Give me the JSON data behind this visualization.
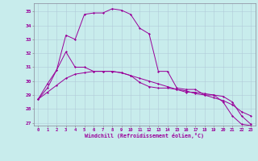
{
  "bg_color": "#c8ecec",
  "grid_color": "#b0c8d8",
  "line_color": "#990099",
  "xlabel": "Windchill (Refroidissement éolien,°C)",
  "xlim": [
    -0.5,
    23.5
  ],
  "ylim": [
    26.8,
    35.6
  ],
  "yticks": [
    27,
    28,
    29,
    30,
    31,
    32,
    33,
    34,
    35
  ],
  "xticks": [
    0,
    1,
    2,
    3,
    4,
    5,
    6,
    7,
    8,
    9,
    10,
    11,
    12,
    13,
    14,
    15,
    16,
    17,
    18,
    19,
    20,
    21,
    22,
    23
  ],
  "line1_x": [
    0,
    1,
    2,
    3,
    4,
    5,
    6,
    7,
    8,
    9,
    10,
    11,
    12,
    13,
    14,
    15,
    16,
    17,
    18,
    19,
    20,
    21,
    22,
    23
  ],
  "line1_y": [
    28.7,
    29.8,
    30.8,
    33.3,
    33.0,
    34.8,
    34.9,
    34.9,
    35.2,
    35.1,
    34.8,
    33.8,
    33.4,
    30.7,
    30.7,
    29.5,
    29.4,
    29.4,
    29.0,
    29.0,
    28.5,
    27.5,
    26.9,
    26.8
  ],
  "line2_x": [
    0,
    1,
    2,
    3,
    4,
    5,
    6,
    7,
    8,
    9,
    10,
    11,
    12,
    13,
    14,
    15,
    16,
    17,
    18,
    19,
    20,
    21,
    22,
    23
  ],
  "line2_y": [
    28.7,
    29.2,
    29.7,
    30.2,
    30.5,
    30.6,
    30.7,
    30.7,
    30.7,
    30.6,
    30.4,
    30.2,
    30.0,
    29.8,
    29.6,
    29.4,
    29.3,
    29.1,
    29.0,
    28.8,
    28.6,
    28.3,
    27.8,
    27.5
  ],
  "line3_x": [
    0,
    1,
    2,
    3,
    4,
    5,
    6,
    7,
    8,
    9,
    10,
    11,
    12,
    13,
    14,
    15,
    16,
    17,
    18,
    19,
    20,
    21,
    22,
    23
  ],
  "line3_y": [
    28.7,
    29.5,
    30.8,
    32.1,
    31.0,
    31.0,
    30.7,
    30.7,
    30.7,
    30.6,
    30.4,
    29.9,
    29.6,
    29.5,
    29.5,
    29.4,
    29.2,
    29.2,
    29.1,
    29.0,
    28.9,
    28.5,
    27.5,
    26.9
  ]
}
